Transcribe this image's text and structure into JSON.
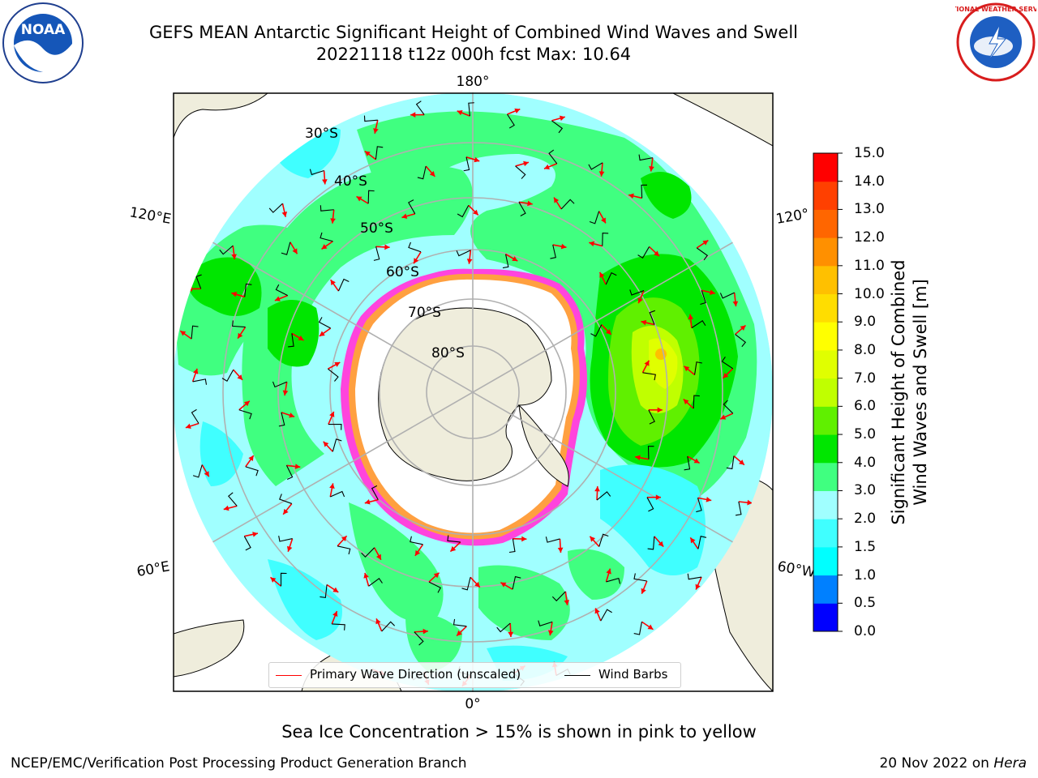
{
  "title": {
    "line1": "GEFS MEAN Antarctic Significant Height of Combined Wind Waves and Swell",
    "line2": "20221118 t12z 000h fcst   Max: 10.64"
  },
  "map": {
    "projection": "south-polar-stereographic",
    "longitude_labels": {
      "top": "180°",
      "bottom": "0°",
      "left_upper": "120°E",
      "left_lower": "60°E",
      "right_upper": "120°",
      "right_lower": "60°W"
    },
    "latitude_labels": [
      "30°S",
      "40°S",
      "50°S",
      "60°S",
      "70°S",
      "80°S"
    ],
    "land_color": "#efeddc",
    "sea_ice_color": "#ffffff",
    "wave_arrow_color": "#ff0000",
    "wind_barb_color": "#000000"
  },
  "legend": {
    "wave_direction_label": "Primary Wave Direction (unscaled)",
    "wind_barbs_label": "Wind Barbs"
  },
  "colorbar": {
    "label_line1": "Significant Height of Combined",
    "label_line2": "Wind Waves and Swell [m]",
    "ticks": [
      "15.0",
      "14.0",
      "13.0",
      "12.0",
      "11.0",
      "10.0",
      "9.0",
      "8.0",
      "7.0",
      "6.0",
      "5.0",
      "4.0",
      "3.0",
      "2.0",
      "1.5",
      "1.0",
      "0.5",
      "0.0"
    ],
    "colors_bottom_to_top": [
      "#0000ff",
      "#0080ff",
      "#00ffff",
      "#40ffff",
      "#a0ffff",
      "#40ff80",
      "#00e600",
      "#60f000",
      "#c0ff00",
      "#e0ff00",
      "#ffff00",
      "#ffdd00",
      "#ffc000",
      "#ff9000",
      "#ff6600",
      "#ff4000",
      "#ff0000"
    ]
  },
  "sea_ice_note": "Sea Ice Concentration > 15% is shown in pink to yellow",
  "footer": {
    "credit": "NCEP/EMC/Verification Post Processing Product Generation Branch",
    "date_prefix": "20 Nov 2022 on",
    "host": "Hera"
  },
  "logos": {
    "noaa": "NOAA",
    "nws": "NATIONAL WEATHER SERVICE"
  }
}
